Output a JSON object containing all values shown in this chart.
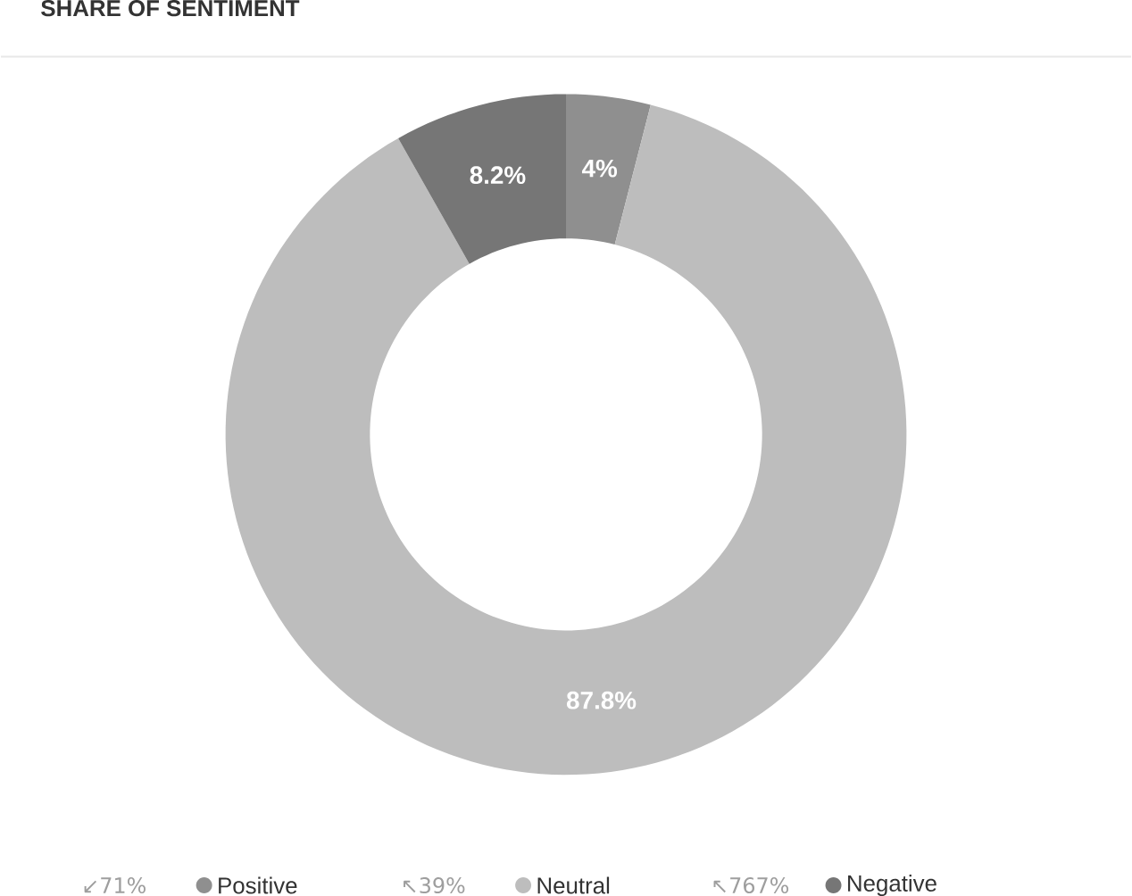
{
  "chart_data": {
    "type": "donut",
    "title": "SHARE OF SENTIMENT",
    "categories": [
      "Positive",
      "Neutral",
      "Negative"
    ],
    "values": [
      4,
      87.8,
      8.2
    ],
    "colors": [
      "#8f8f8f",
      "#bdbdbd",
      "#767676"
    ],
    "value_labels": [
      "4%",
      "87.8%",
      "8.2%"
    ],
    "legend": "bottom",
    "annotations": [
      "↙71%",
      "↖39%",
      "↖767%"
    ]
  }
}
